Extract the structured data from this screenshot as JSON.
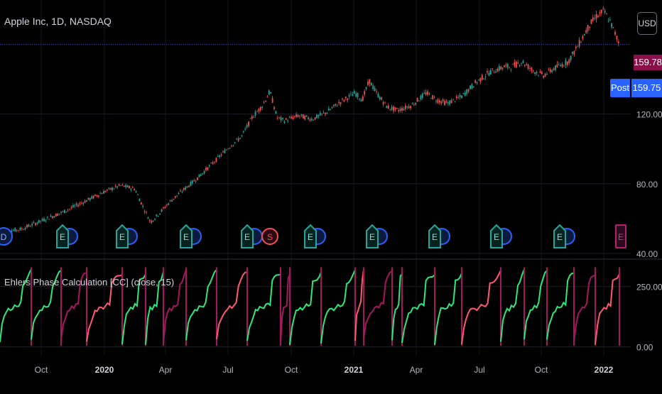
{
  "header": {
    "symbol_title": "Apple Inc, 1D, NASDAQ",
    "currency_button": "USD"
  },
  "indicator": {
    "title": "Ehlers Phase Calculation [CC] (close,  15)"
  },
  "price_tags": {
    "last_price": "159.78",
    "post_label": "Post",
    "post_price": "159.75"
  },
  "colors": {
    "background": "#000000",
    "up": "#26a69a",
    "down": "#ef5350",
    "phase_green": "#2ee87a",
    "phase_red": "#ff5a6e",
    "phase_magenta": "#a5185f",
    "price_line": "#3c4bd6",
    "earnings_teal": "#26a69a",
    "dividend_blue": "#2962ff"
  },
  "chart_data": [
    {
      "type": "line",
      "name": "price",
      "y_axis_ticks": [
        "120.00",
        "80.00",
        "40.00"
      ],
      "y_axis_values": [
        120,
        80,
        40
      ],
      "ylim": [
        38,
        182
      ],
      "x_axis_labels": [
        "Oct",
        "2020",
        "Apr",
        "Jul",
        "Oct",
        "2021",
        "Apr",
        "Jul",
        "Oct",
        "2022"
      ],
      "x_axis_major": [
        false,
        true,
        false,
        false,
        false,
        true,
        false,
        false,
        false,
        true
      ],
      "last_price": 159.78,
      "trend_points": [
        [
          0,
          52
        ],
        [
          30,
          54
        ],
        [
          60,
          59
        ],
        [
          90,
          64
        ],
        [
          120,
          70
        ],
        [
          150,
          76
        ],
        [
          170,
          79
        ],
        [
          190,
          77
        ],
        [
          200,
          68
        ],
        [
          212,
          58
        ],
        [
          222,
          62
        ],
        [
          240,
          70
        ],
        [
          260,
          77
        ],
        [
          280,
          84
        ],
        [
          300,
          92
        ],
        [
          320,
          100
        ],
        [
          340,
          107
        ],
        [
          355,
          118
        ],
        [
          370,
          125
        ],
        [
          380,
          133
        ],
        [
          390,
          118
        ],
        [
          400,
          116
        ],
        [
          420,
          119
        ],
        [
          440,
          117
        ],
        [
          460,
          121
        ],
        [
          480,
          127
        ],
        [
          500,
          132
        ],
        [
          510,
          128
        ],
        [
          520,
          139
        ],
        [
          530,
          132
        ],
        [
          545,
          124
        ],
        [
          560,
          122
        ],
        [
          580,
          125
        ],
        [
          600,
          132
        ],
        [
          615,
          128
        ],
        [
          630,
          126
        ],
        [
          650,
          130
        ],
        [
          670,
          138
        ],
        [
          690,
          144
        ],
        [
          710,
          147
        ],
        [
          720,
          147
        ],
        [
          735,
          150
        ],
        [
          750,
          145
        ],
        [
          765,
          142
        ],
        [
          780,
          146
        ],
        [
          800,
          150
        ],
        [
          815,
          160
        ],
        [
          830,
          171
        ],
        [
          840,
          176
        ],
        [
          850,
          179
        ],
        [
          860,
          172
        ],
        [
          872,
          160
        ]
      ],
      "markers": [
        {
          "label": "D",
          "kind": "dividend"
        },
        {
          "label": "E",
          "kind": "earnings"
        },
        {
          "label": "E",
          "kind": "earnings"
        },
        {
          "label": "E",
          "kind": "earnings"
        },
        {
          "label": "E",
          "kind": "earnings"
        },
        {
          "label": "S",
          "kind": "split"
        },
        {
          "label": "E",
          "kind": "earnings"
        },
        {
          "label": "E",
          "kind": "earnings"
        },
        {
          "label": "E",
          "kind": "earnings"
        },
        {
          "label": "E",
          "kind": "earnings"
        },
        {
          "label": "E",
          "kind": "earnings"
        },
        {
          "label": "E",
          "kind": "upcoming"
        }
      ]
    },
    {
      "type": "line",
      "name": "Ehlers Phase Calculation",
      "y_axis_ticks": [
        "250.00",
        "0.00"
      ],
      "y_axis_values": [
        250,
        0
      ],
      "ylim": [
        -10,
        355
      ]
    }
  ]
}
